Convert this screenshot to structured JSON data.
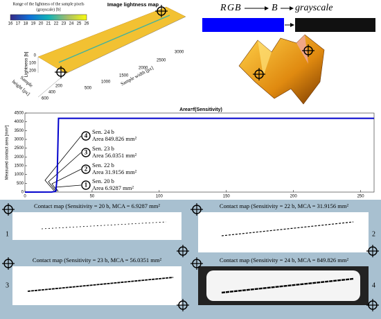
{
  "lightness_map": {
    "colorbar_title": [
      "Range of the lightness of the sample pixels",
      "(grayscale) [b]"
    ],
    "colorbar_ticks": [
      "16",
      "17",
      "18",
      "19",
      "20",
      "21",
      "22",
      "23",
      "24",
      "25",
      "26"
    ],
    "title": "Image lightness map",
    "z_label": "Lightness [b]",
    "z_ticks": [
      "0",
      "100",
      "200"
    ],
    "x_label": "Sample width [px]",
    "x_ticks": [
      "500",
      "1000",
      "1500",
      "2000",
      "2500",
      "3000"
    ],
    "y_label": [
      "Sample",
      "height [px]"
    ],
    "y_ticks": [
      "200",
      "400",
      "600"
    ]
  },
  "conversion": {
    "rgb": [
      "R",
      "G",
      "B"
    ],
    "b": "B",
    "gray": "grayscale"
  },
  "chart_data": {
    "type": "line",
    "title": "Area=f(Sensitivity)",
    "y_label": "Measured contact area [mm²]",
    "x": [
      0,
      20,
      22,
      23,
      24,
      25,
      260
    ],
    "series": [
      {
        "name": "Area",
        "color": "#0000cc",
        "values": [
          0,
          6.9287,
          31.9156,
          56.0351,
          849.826,
          4200,
          4200
        ]
      }
    ],
    "xlim": [
      0,
      260
    ],
    "ylim": [
      0,
      4500
    ],
    "xticks": [
      0,
      50,
      100,
      150,
      200,
      250
    ],
    "yticks": [
      0,
      500,
      1000,
      1500,
      2000,
      2500,
      3000,
      3500,
      4000,
      4500
    ],
    "annotations": [
      {
        "number": "4",
        "sensitivity": "Sen. 24 b",
        "area": "Area 849.826 mm²"
      },
      {
        "number": "3",
        "sensitivity": "Sen. 23 b",
        "area": "Area 56.0351 mm²"
      },
      {
        "number": "2",
        "sensitivity": "Sen. 22 b",
        "area": "Area 31.9156 mm²"
      },
      {
        "number": "1",
        "sensitivity": "Sen. 20 b",
        "area": "Area 6.9287 mm²"
      }
    ]
  },
  "contact_maps": [
    {
      "title": "Contact map (Sensitivity = 20 b, MCA = 6.9287 mm²",
      "label": "1"
    },
    {
      "title": "Contact map (Sensitivity = 22 b, MCA = 31.9156 mm²",
      "label": "2"
    },
    {
      "title": "Contact map (Sensitivity = 23 b, MCA = 56.0351 mm²",
      "label": "3"
    },
    {
      "title": "Contact map (Sensitivity = 24 b, MCA = 849.826 mm²",
      "label": "4"
    }
  ]
}
